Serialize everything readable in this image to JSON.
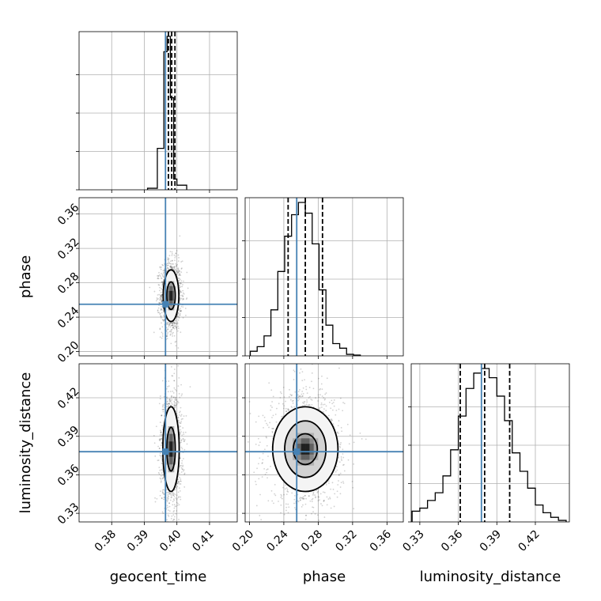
{
  "chart_data": {
    "type": "corner",
    "parameters": [
      "geocent_time",
      "phase",
      "luminosity_distance"
    ],
    "truth_color": "#4682b4",
    "truths": {
      "geocent_time": 0.3965,
      "phase": 0.255,
      "luminosity_distance": 0.378
    },
    "ranges": {
      "geocent_time": [
        0.37,
        0.4185
      ],
      "phase": [
        0.195,
        0.379
      ],
      "luminosity_distance": [
        0.3233,
        0.4465
      ]
    },
    "ticks": {
      "geocent_time": [
        0.38,
        0.39,
        0.4,
        0.41
      ],
      "phase": [
        0.2,
        0.24,
        0.28,
        0.32,
        0.36
      ],
      "luminosity_distance": [
        0.33,
        0.36,
        0.39,
        0.42
      ]
    },
    "tick_labels": {
      "geocent_time": [
        "0.38",
        "0.39",
        "0.40",
        "0.41"
      ],
      "phase": [
        "0.20",
        "0.24",
        "0.28",
        "0.32",
        "0.36"
      ],
      "luminosity_distance": [
        "0.33",
        "0.36",
        "0.39",
        "0.42"
      ]
    },
    "quantiles": {
      "geocent_time": [
        0.3974,
        0.3984,
        0.3994
      ],
      "phase": [
        0.245,
        0.265,
        0.285
      ],
      "luminosity_distance": [
        0.3615,
        0.3805,
        0.4
      ]
    },
    "marginals": {
      "geocent_time": {
        "bin_edges": [
          0.391,
          0.394,
          0.396,
          0.397,
          0.398,
          0.399,
          0.4,
          0.403
        ],
        "counts": [
          0.01,
          0.27,
          0.9,
          1.0,
          0.6,
          0.07,
          0.03
        ]
      },
      "phase": {
        "bin_edges": [
          0.201,
          0.209,
          0.217,
          0.225,
          0.233,
          0.241,
          0.249,
          0.257,
          0.265,
          0.273,
          0.281,
          0.289,
          0.297,
          0.305,
          0.313,
          0.321,
          0.329
        ],
        "counts": [
          0.03,
          0.06,
          0.13,
          0.3,
          0.55,
          0.78,
          0.92,
          1.0,
          0.93,
          0.73,
          0.43,
          0.2,
          0.08,
          0.05,
          0.01,
          0.005
        ]
      },
      "luminosity_distance": {
        "bin_edges": [
          0.324,
          0.33,
          0.336,
          0.342,
          0.348,
          0.354,
          0.36,
          0.366,
          0.372,
          0.378,
          0.384,
          0.39,
          0.396,
          0.402,
          0.408,
          0.414,
          0.42,
          0.426,
          0.432,
          0.438,
          0.444
        ],
        "counts": [
          0.07,
          0.09,
          0.14,
          0.19,
          0.3,
          0.47,
          0.69,
          0.87,
          0.97,
          1.0,
          0.94,
          0.82,
          0.66,
          0.45,
          0.33,
          0.22,
          0.11,
          0.06,
          0.03,
          0.01
        ]
      }
    },
    "joint": {
      "phase_vs_geocent_time": {
        "center": [
          0.3982,
          0.265
        ],
        "spread": [
          0.0012,
          0.015
        ],
        "contour_radii": [
          [
            0.0013,
            0.016
          ],
          [
            0.0024,
            0.03
          ]
        ]
      },
      "luminosity_distance_vs_geocent_time": {
        "center": [
          0.3982,
          0.38
        ],
        "spread": [
          0.0012,
          0.0165
        ],
        "contour_radii": [
          [
            0.0013,
            0.017
          ],
          [
            0.0025,
            0.033
          ]
        ]
      },
      "luminosity_distance_vs_phase": {
        "center": [
          0.265,
          0.38
        ],
        "spread": [
          0.016,
          0.0165
        ],
        "contour_radii": [
          [
            0.014,
            0.012
          ],
          [
            0.024,
            0.022
          ],
          [
            0.038,
            0.033
          ]
        ]
      }
    }
  }
}
